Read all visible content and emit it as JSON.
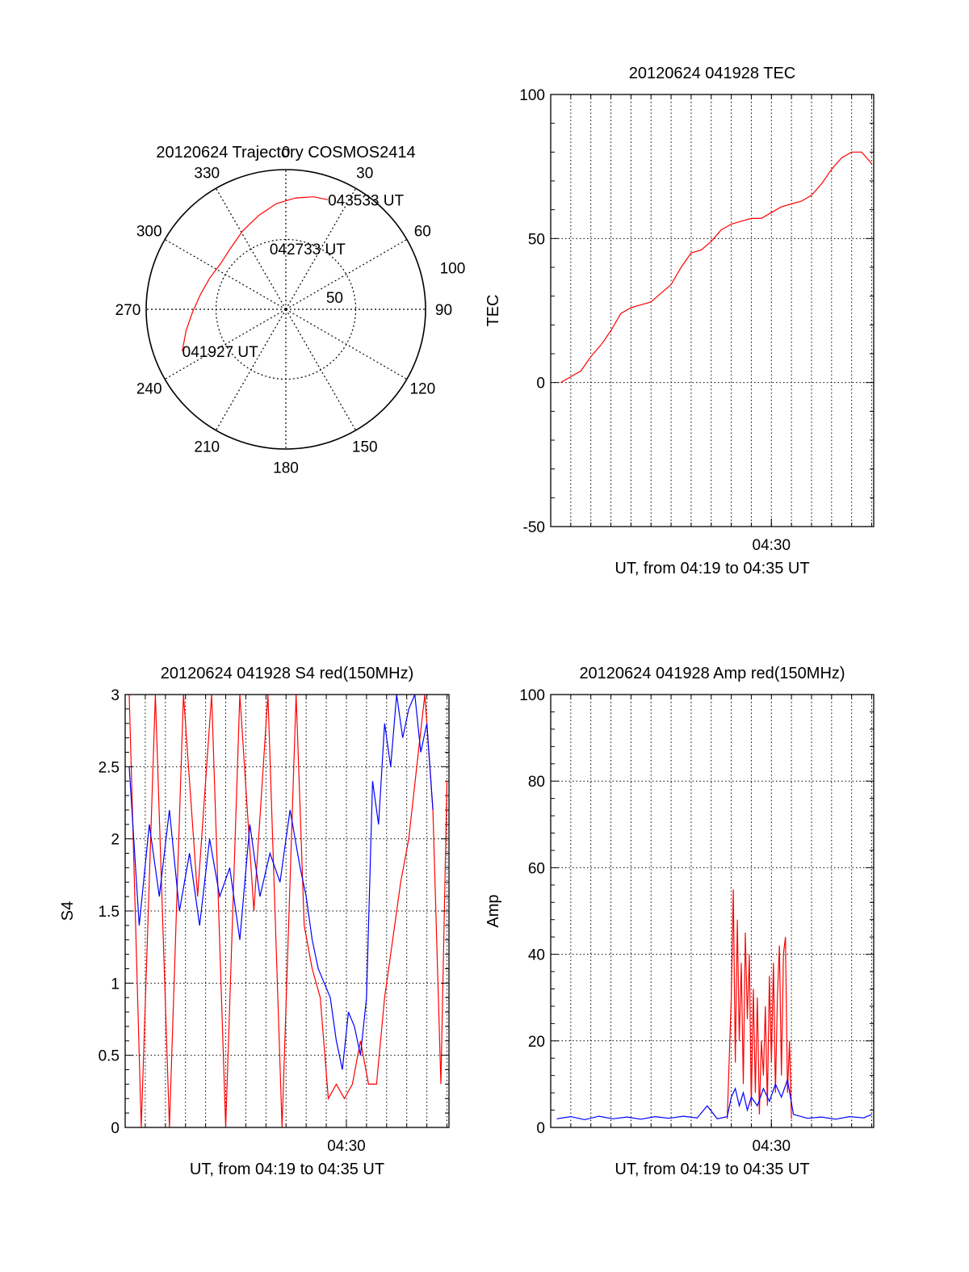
{
  "colors": {
    "series_a": "#ff0000",
    "series_b": "#0000ff",
    "axes": "#000000",
    "grid": "#000000",
    "background": "#ffffff"
  },
  "chart_data": [
    {
      "id": "trajectory",
      "type": "polar",
      "title": "20120624 Trajectory COSMOS2414",
      "angle_labels": [
        {
          "deg": 0,
          "text": "0"
        },
        {
          "deg": 30,
          "text": "30"
        },
        {
          "deg": 60,
          "text": "60"
        },
        {
          "deg": 90,
          "text": "90"
        },
        {
          "deg": 120,
          "text": "120"
        },
        {
          "deg": 150,
          "text": "150"
        },
        {
          "deg": 180,
          "text": "180"
        },
        {
          "deg": 210,
          "text": "210"
        },
        {
          "deg": 240,
          "text": "240"
        },
        {
          "deg": 270,
          "text": "270"
        },
        {
          "deg": 300,
          "text": "300"
        },
        {
          "deg": 330,
          "text": "330"
        }
      ],
      "radial_labels": [
        {
          "r": 50,
          "text": "50"
        },
        {
          "r": 100,
          "text": "100"
        }
      ],
      "rmax": 100,
      "track": {
        "color": "#ff0000",
        "points": [
          [
            248,
            80
          ],
          [
            258,
            73
          ],
          [
            268,
            67
          ],
          [
            280,
            62
          ],
          [
            292,
            59
          ],
          [
            305,
            57
          ],
          [
            318,
            59
          ],
          [
            331,
            64
          ],
          [
            344,
            70
          ],
          [
            355,
            76
          ],
          [
            5,
            80
          ],
          [
            14,
            83
          ],
          [
            21,
            84
          ]
        ]
      },
      "time_labels": [
        {
          "text": "041927 UT",
          "at": [
            248,
            80
          ]
        },
        {
          "text": "042733 UT",
          "at": [
            345,
            45
          ]
        },
        {
          "text": "043533 UT",
          "at": [
            21,
            84
          ]
        }
      ]
    },
    {
      "id": "tec",
      "type": "line",
      "title": "20120624 041928 TEC",
      "ylabel": "TEC",
      "xlabel": "UT, from 04:19 to 04:35 UT",
      "xlim": [
        0,
        16.1
      ],
      "ylim": [
        -50,
        100
      ],
      "yticks": [
        {
          "v": -50,
          "text": "-50"
        },
        {
          "v": 0,
          "text": "0"
        },
        {
          "v": 50,
          "text": "50"
        },
        {
          "v": 100,
          "text": "100"
        }
      ],
      "xticks": [
        {
          "v": 11,
          "text": "04:30"
        }
      ],
      "xgrid_every": 1,
      "series": [
        {
          "color": "#ff0000",
          "x": [
            0.5,
            1.0,
            1.5,
            2.0,
            2.5,
            3.0,
            3.5,
            4.0,
            4.5,
            5.0,
            5.5,
            6.0,
            6.5,
            7.0,
            7.5,
            8.0,
            8.5,
            9.0,
            9.5,
            10.0,
            10.5,
            11.0,
            11.5,
            12.0,
            12.5,
            13.0,
            13.5,
            14.0,
            14.5,
            15.0,
            15.5,
            16.0
          ],
          "y": [
            0,
            2,
            4,
            9,
            13,
            18,
            24,
            26,
            27,
            28,
            31,
            34,
            40,
            45,
            46,
            49,
            53,
            55,
            56,
            57,
            57,
            59,
            61,
            62,
            63,
            65,
            69,
            74,
            78,
            80,
            80,
            76
          ]
        }
      ]
    },
    {
      "id": "s4",
      "type": "line",
      "title": "20120624 041928 S4 red(150MHz)",
      "ylabel": "S4",
      "xlabel": "UT, from 04:19 to 04:35 UT",
      "xlim": [
        0,
        16.1
      ],
      "ylim": [
        0,
        3
      ],
      "yticks": [
        {
          "v": 0,
          "text": "0"
        },
        {
          "v": 0.5,
          "text": "0.5"
        },
        {
          "v": 1,
          "text": "1"
        },
        {
          "v": 1.5,
          "text": "1.5"
        },
        {
          "v": 2,
          "text": "2"
        },
        {
          "v": 2.5,
          "text": "2.5"
        },
        {
          "v": 3,
          "text": "3"
        }
      ],
      "xticks": [
        {
          "v": 11,
          "text": "04:30"
        }
      ],
      "xgrid_every": 1,
      "series": [
        {
          "color": "#ff0000",
          "x": [
            0.2,
            0.8,
            1.5,
            2.2,
            2.9,
            3.6,
            4.3,
            5.0,
            5.7,
            6.4,
            7.1,
            7.8,
            8.5,
            8.9,
            9.3,
            9.7,
            10.1,
            10.5,
            10.9,
            11.3,
            11.7,
            12.1,
            12.5,
            12.9,
            13.3,
            13.7,
            14.1,
            14.5,
            14.9,
            15.3,
            15.7,
            16.0
          ],
          "y": [
            3.0,
            0.0,
            3.0,
            0.0,
            3.0,
            1.6,
            3.0,
            0.0,
            3.0,
            1.5,
            3.0,
            0.0,
            3.0,
            1.4,
            1.1,
            0.9,
            0.2,
            0.3,
            0.2,
            0.3,
            0.6,
            0.3,
            0.3,
            0.9,
            1.3,
            1.7,
            2.0,
            2.5,
            3.0,
            2.2,
            0.3,
            2.4
          ]
        },
        {
          "color": "#0000ff",
          "x": [
            0.2,
            0.7,
            1.2,
            1.7,
            2.2,
            2.7,
            3.2,
            3.7,
            4.2,
            4.7,
            5.2,
            5.7,
            6.2,
            6.7,
            7.2,
            7.7,
            8.2,
            8.7,
            9.0,
            9.3,
            9.6,
            9.9,
            10.2,
            10.5,
            10.8,
            11.1,
            11.4,
            11.7,
            12.0,
            12.3,
            12.6,
            12.9,
            13.2,
            13.5,
            13.8,
            14.1,
            14.4,
            14.7,
            15.0,
            15.3
          ],
          "y": [
            2.5,
            1.4,
            2.1,
            1.6,
            2.2,
            1.5,
            1.9,
            1.4,
            2.0,
            1.6,
            1.8,
            1.3,
            2.1,
            1.6,
            1.9,
            1.7,
            2.2,
            1.8,
            1.6,
            1.3,
            1.1,
            1.0,
            0.9,
            0.6,
            0.4,
            0.8,
            0.7,
            0.5,
            0.9,
            2.4,
            2.1,
            2.8,
            2.5,
            3.0,
            2.7,
            2.9,
            3.0,
            2.6,
            2.8,
            2.2
          ]
        }
      ]
    },
    {
      "id": "amp",
      "type": "line",
      "title": "20120624 041928 Amp red(150MHz)",
      "ylabel": "Amp",
      "xlabel": "UT, from 04:19 to 04:35 UT",
      "xlim": [
        0,
        16.1
      ],
      "ylim": [
        0,
        100
      ],
      "yticks": [
        {
          "v": 0,
          "text": "0"
        },
        {
          "v": 20,
          "text": "20"
        },
        {
          "v": 40,
          "text": "40"
        },
        {
          "v": 60,
          "text": "60"
        },
        {
          "v": 80,
          "text": "80"
        },
        {
          "v": 100,
          "text": "100"
        }
      ],
      "xticks": [
        {
          "v": 11,
          "text": "04:30"
        }
      ],
      "xgrid_every": 1,
      "series": [
        {
          "color": "#ff0000",
          "x": [
            8.8,
            9.0,
            9.1,
            9.2,
            9.3,
            9.4,
            9.5,
            9.6,
            9.7,
            9.8,
            9.9,
            10.0,
            10.1,
            10.2,
            10.3,
            10.4,
            10.5,
            10.6,
            10.7,
            10.8,
            10.9,
            11.0,
            11.1,
            11.2,
            11.3,
            11.4,
            11.5,
            11.6,
            11.7,
            11.8,
            11.9,
            12.0
          ],
          "y": [
            2,
            30,
            55,
            15,
            48,
            20,
            38,
            10,
            45,
            25,
            40,
            5,
            32,
            8,
            30,
            3,
            20,
            12,
            28,
            5,
            35,
            15,
            38,
            8,
            30,
            42,
            12,
            40,
            44,
            8,
            20,
            2
          ]
        },
        {
          "color": "#0000ff",
          "x": [
            0.3,
            1.0,
            1.7,
            2.4,
            3.1,
            3.8,
            4.5,
            5.2,
            5.9,
            6.6,
            7.3,
            7.8,
            8.3,
            8.8,
            9.0,
            9.2,
            9.4,
            9.6,
            9.8,
            10.0,
            10.3,
            10.6,
            10.9,
            11.2,
            11.5,
            11.8,
            12.1,
            12.8,
            13.5,
            14.2,
            14.9,
            15.6,
            16.0
          ],
          "y": [
            2,
            2.5,
            1.8,
            2.6,
            2.0,
            2.4,
            1.9,
            2.5,
            2.1,
            2.6,
            2.2,
            5.0,
            2.0,
            2.5,
            7,
            9,
            5,
            8,
            4,
            7,
            5,
            9,
            6,
            10,
            7,
            11,
            3,
            2.1,
            2.4,
            1.9,
            2.5,
            2.2,
            3.0
          ]
        }
      ]
    }
  ]
}
